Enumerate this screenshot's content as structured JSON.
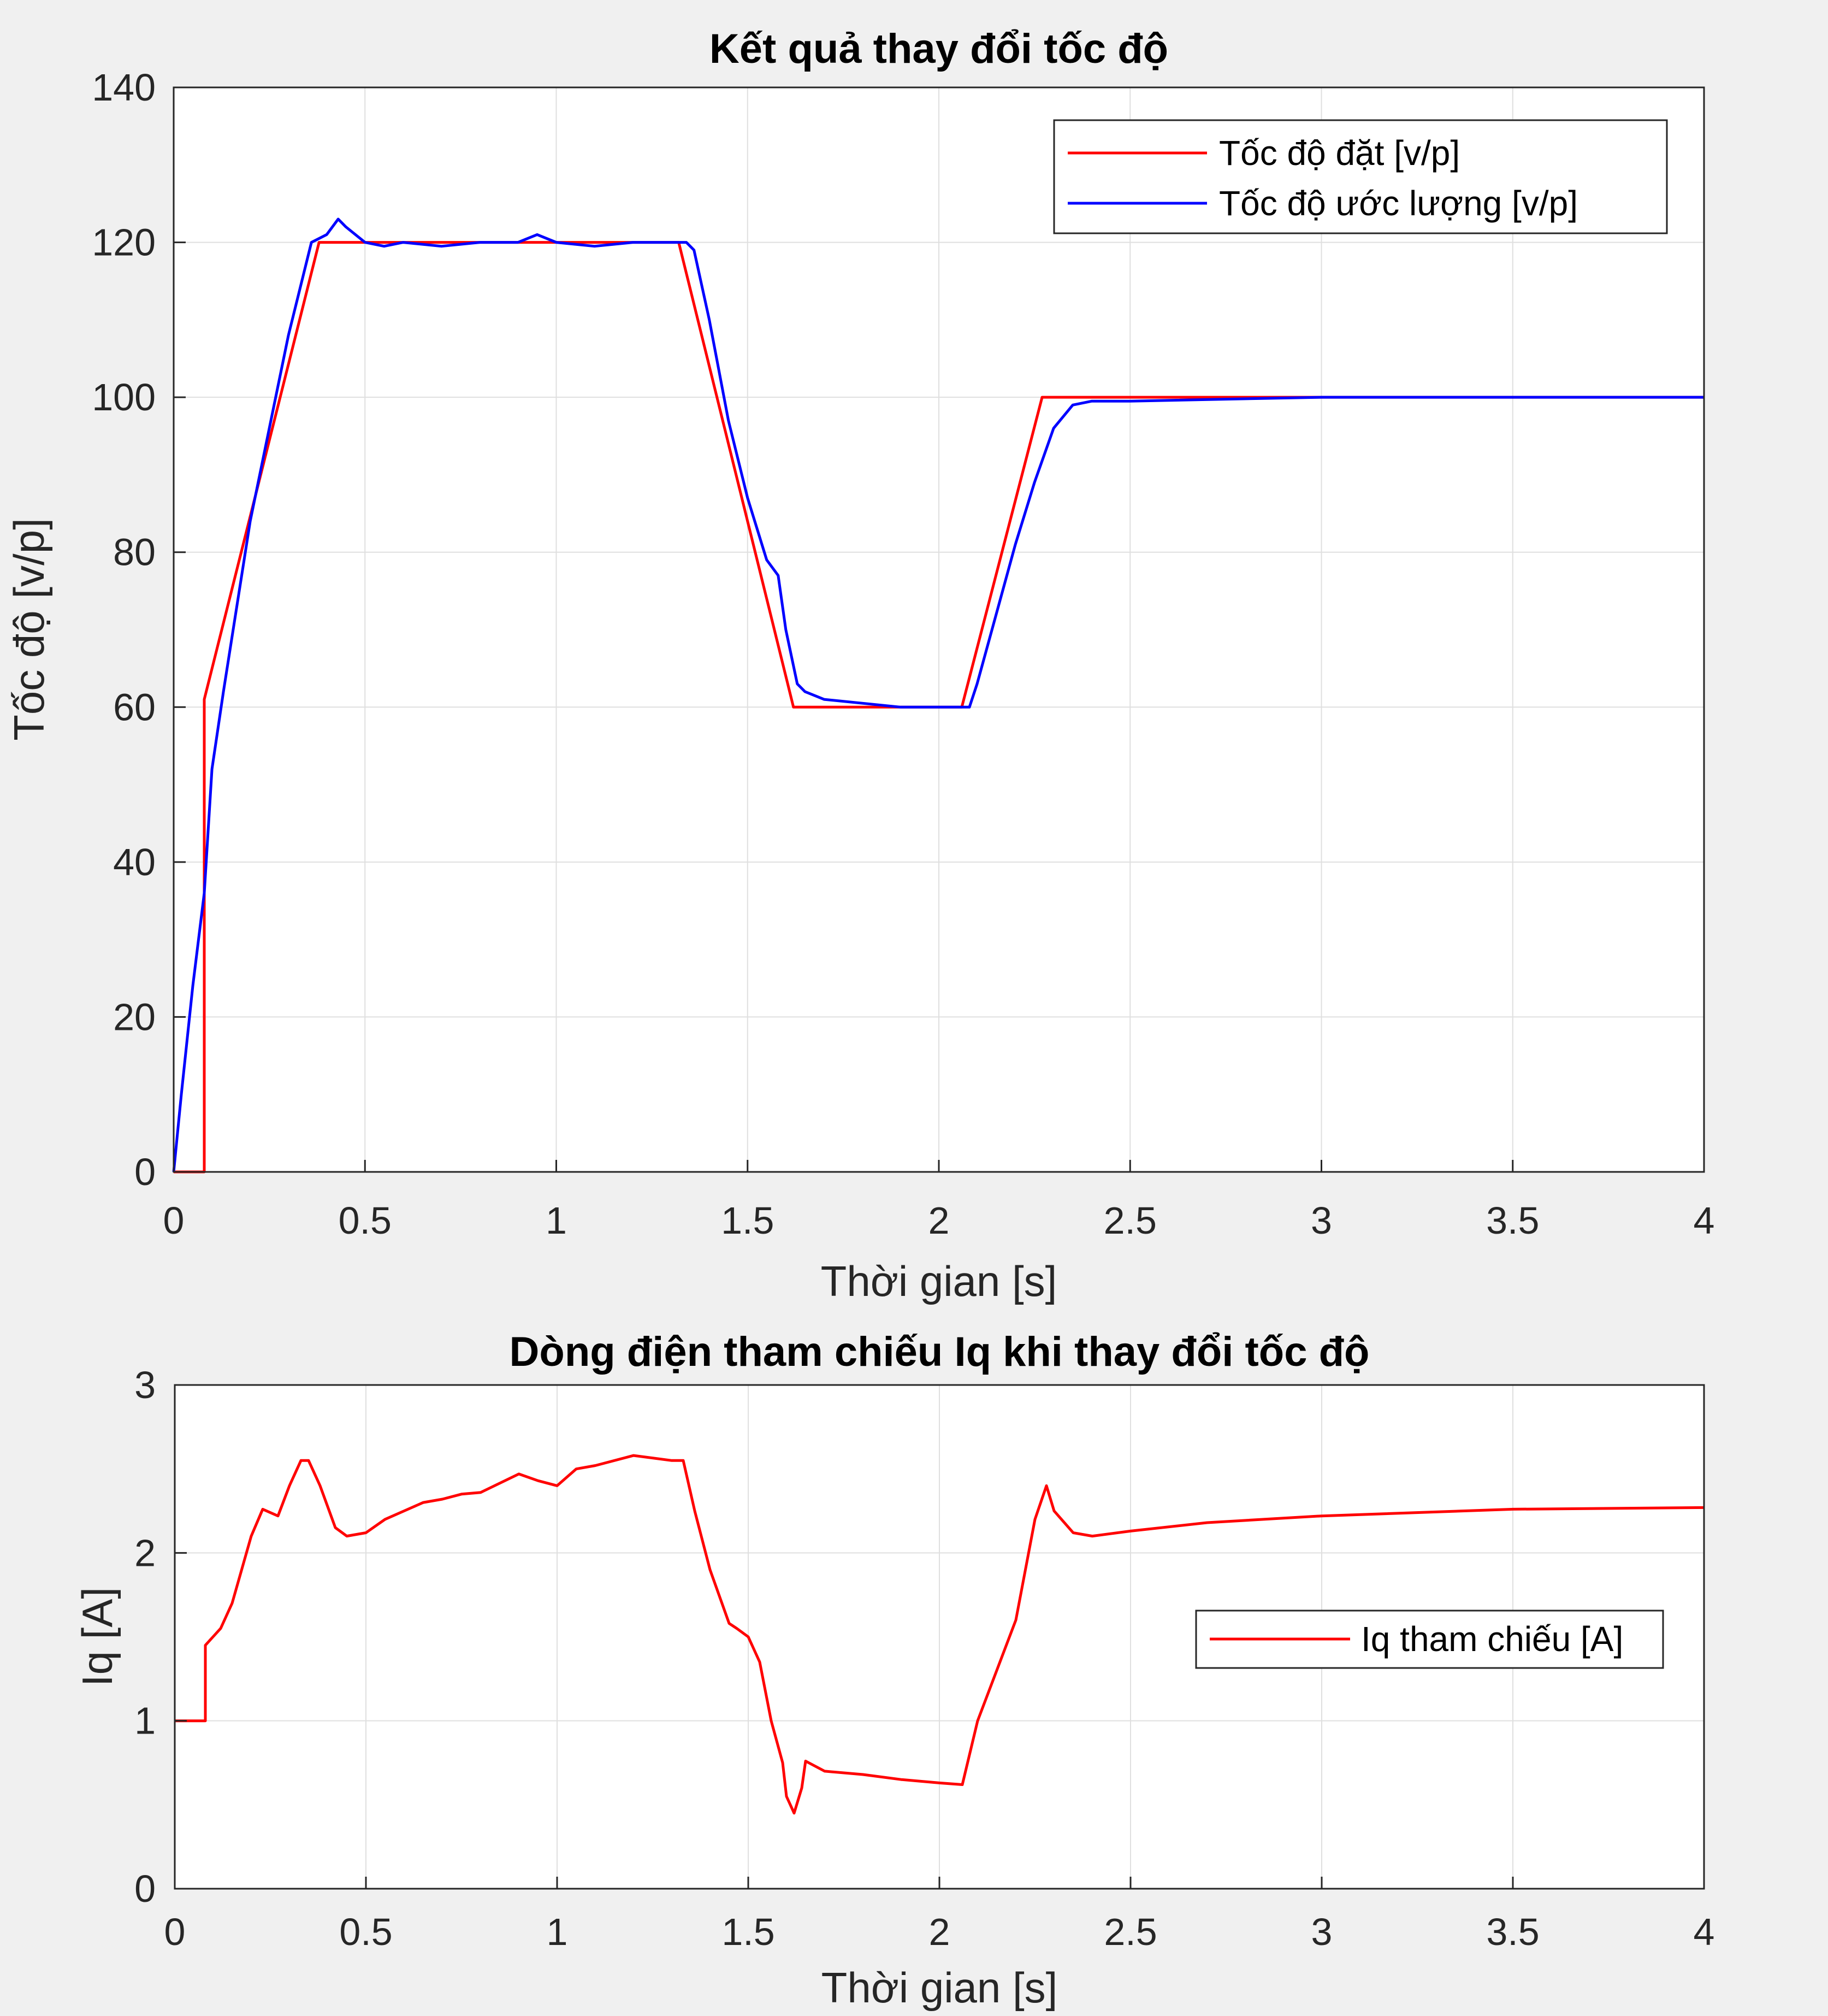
{
  "chart_data": [
    {
      "type": "line",
      "title": "Kết quả thay đổi tốc độ",
      "xlabel": "Thời gian [s]",
      "ylabel": "Tốc độ [v/p]",
      "xlim": [
        0,
        4
      ],
      "ylim": [
        0,
        140
      ],
      "xticks": [
        "0",
        "0.5",
        "1",
        "1.5",
        "2",
        "2.5",
        "3",
        "3.5",
        "4"
      ],
      "yticks": [
        "0",
        "20",
        "40",
        "60",
        "80",
        "100",
        "120",
        "140"
      ],
      "grid": true,
      "legend_position": "top-right",
      "series": [
        {
          "name": "Tốc độ đặt [v/p]",
          "color": "#ff0000",
          "x": [
            0,
            0.08,
            0.08,
            0.38,
            1.32,
            1.62,
            2.06,
            2.27,
            4.0
          ],
          "y": [
            0,
            0,
            61,
            120,
            120,
            60,
            60,
            100,
            100
          ]
        },
        {
          "name": "Tốc độ ước lượng [v/p]",
          "color": "#0000ff",
          "x": [
            0,
            0.02,
            0.05,
            0.08,
            0.1,
            0.13,
            0.2,
            0.3,
            0.36,
            0.4,
            0.43,
            0.45,
            0.5,
            0.55,
            0.6,
            0.7,
            0.8,
            0.9,
            0.95,
            1.0,
            1.1,
            1.2,
            1.3,
            1.34,
            1.36,
            1.4,
            1.45,
            1.5,
            1.55,
            1.58,
            1.6,
            1.63,
            1.65,
            1.7,
            1.8,
            1.9,
            2.0,
            2.08,
            2.1,
            2.15,
            2.2,
            2.25,
            2.3,
            2.35,
            2.4,
            2.5,
            3.0,
            3.5,
            3.85,
            4.0
          ],
          "y": [
            0,
            10,
            24,
            36,
            52,
            62,
            84,
            108,
            120,
            121,
            123,
            122,
            120,
            119.5,
            120,
            119.5,
            120,
            120,
            121,
            120,
            119.5,
            120,
            120,
            120,
            119,
            110,
            97,
            87,
            79,
            77,
            70,
            63,
            62,
            61,
            60.5,
            60,
            60,
            60,
            63,
            72,
            81,
            89,
            96,
            99,
            99.5,
            99.5,
            100,
            100,
            100,
            100
          ]
        }
      ]
    },
    {
      "type": "line",
      "title": "Dòng điện tham chiếu Iq khi thay đổi tốc độ",
      "xlabel": "Thời gian [s]",
      "ylabel": "Iq [A]",
      "xlim": [
        0,
        4
      ],
      "ylim": [
        0,
        3
      ],
      "xticks": [
        "0",
        "0.5",
        "1",
        "1.5",
        "2",
        "2.5",
        "3",
        "3.5",
        "4"
      ],
      "yticks": [
        "0",
        "1",
        "2",
        "3"
      ],
      "grid": true,
      "legend_position": "right",
      "series": [
        {
          "name": "Iq tham chiếu [A]",
          "color": "#ff0000",
          "x": [
            0,
            0.08,
            0.08,
            0.1,
            0.12,
            0.15,
            0.2,
            0.23,
            0.27,
            0.3,
            0.33,
            0.35,
            0.38,
            0.42,
            0.45,
            0.5,
            0.55,
            0.6,
            0.65,
            0.7,
            0.75,
            0.8,
            0.9,
            0.95,
            1.0,
            1.05,
            1.1,
            1.2,
            1.3,
            1.33,
            1.36,
            1.4,
            1.45,
            1.47,
            1.5,
            1.53,
            1.56,
            1.59,
            1.6,
            1.62,
            1.64,
            1.65,
            1.7,
            1.8,
            1.9,
            2.0,
            2.06,
            2.1,
            2.15,
            2.2,
            2.25,
            2.28,
            2.3,
            2.35,
            2.4,
            2.5,
            2.7,
            3.0,
            3.5,
            4.0
          ],
          "y": [
            1.0,
            1.0,
            1.45,
            1.5,
            1.55,
            1.7,
            2.1,
            2.26,
            2.22,
            2.4,
            2.55,
            2.55,
            2.4,
            2.15,
            2.1,
            2.12,
            2.2,
            2.25,
            2.3,
            2.32,
            2.35,
            2.36,
            2.47,
            2.43,
            2.4,
            2.5,
            2.52,
            2.58,
            2.55,
            2.55,
            2.25,
            1.9,
            1.58,
            1.55,
            1.5,
            1.35,
            1.0,
            0.75,
            0.55,
            0.45,
            0.6,
            0.76,
            0.7,
            0.68,
            0.65,
            0.63,
            0.62,
            1.0,
            1.3,
            1.6,
            2.2,
            2.4,
            2.25,
            2.12,
            2.1,
            2.13,
            2.18,
            2.22,
            2.26,
            2.27
          ]
        }
      ]
    }
  ]
}
